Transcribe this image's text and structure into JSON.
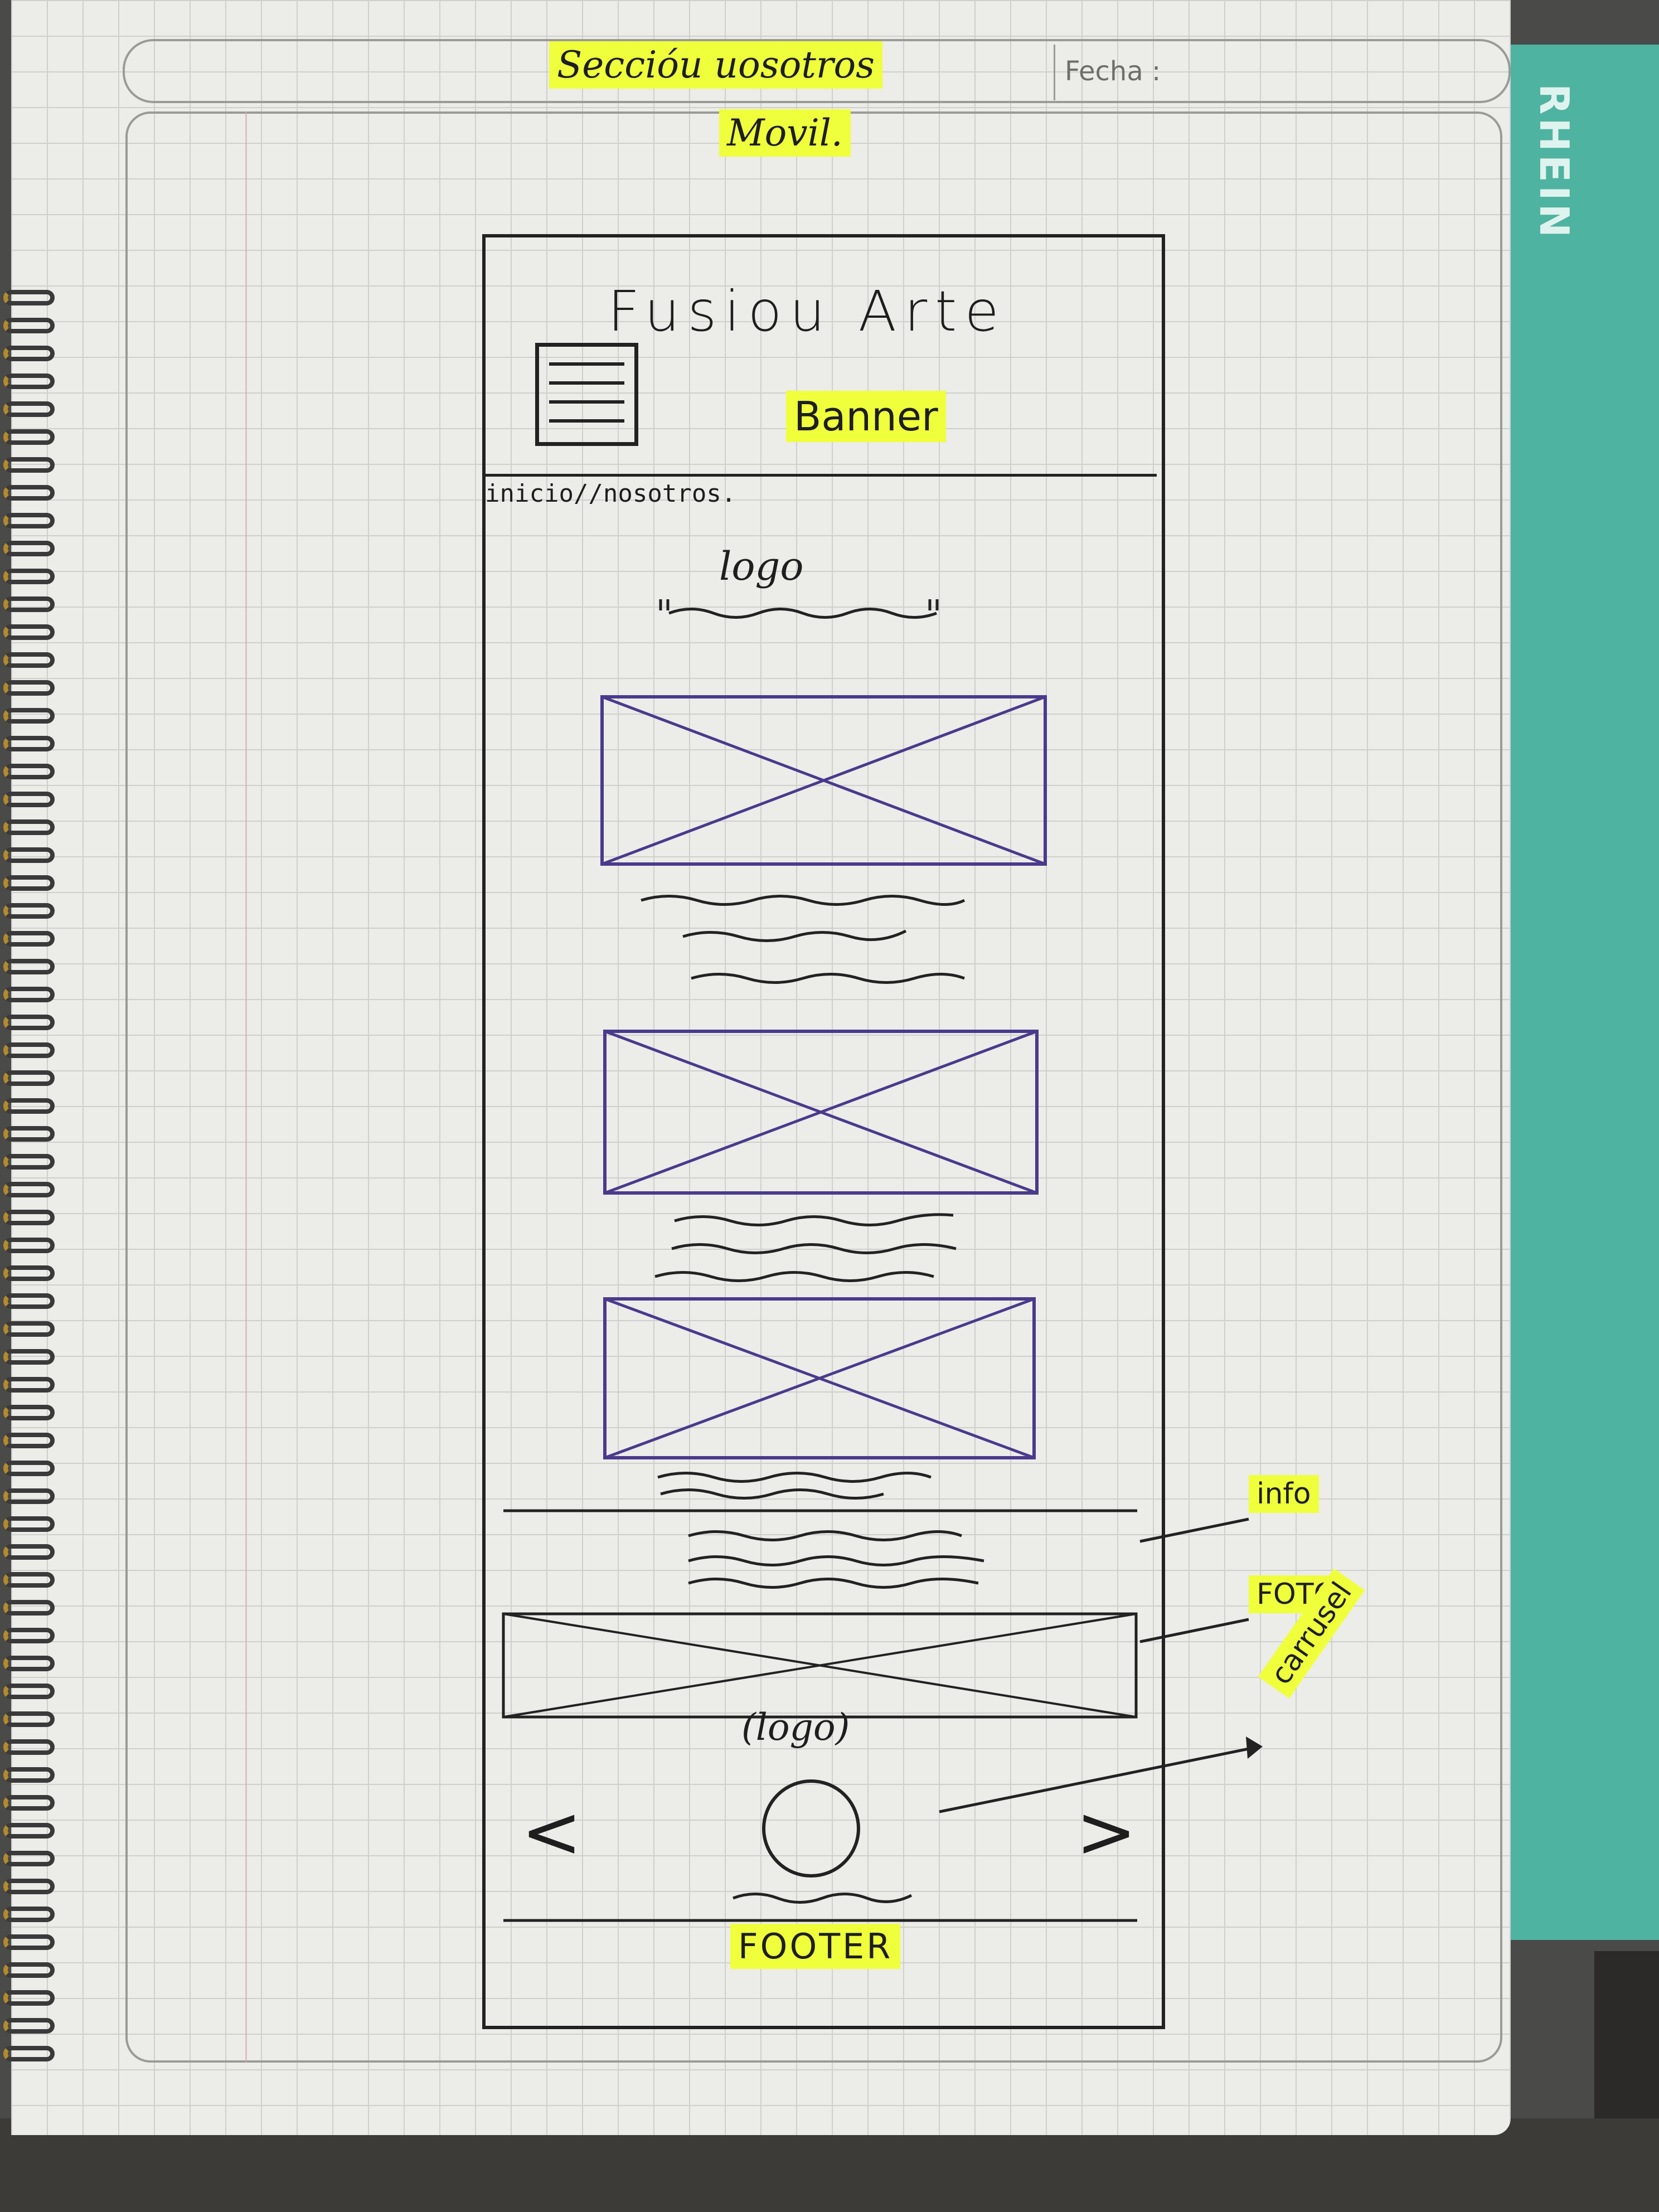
{
  "header": {
    "title_line1": "Seccióu uosotros",
    "title_line2": "Movil.",
    "date_label": "Fecha :"
  },
  "notebook_brand": "RHEIN",
  "wireframe": {
    "brand": "Fusiou Arte",
    "banner_label": "Banner",
    "breadcrumb": "inicio//nosotros.",
    "logo_label": "logo",
    "info_label": "info",
    "foto_label": "FOTO",
    "carousel_label": "carrusel",
    "logo2_label": "(logo)",
    "prev_arrow": "<",
    "next_arrow": ">",
    "footer_label": "FOOTER"
  },
  "colors": {
    "highlighter": "#efff3c",
    "ink_black": "#222222",
    "ink_purple": "#4a3a8c",
    "folder_teal": "#4fb3a1",
    "paper": "#ecece9"
  }
}
